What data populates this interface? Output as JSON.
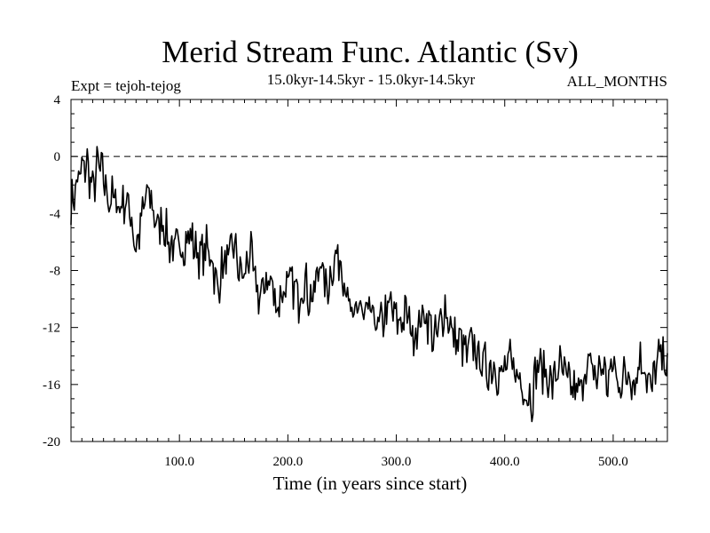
{
  "chart_data": {
    "type": "line",
    "title": "Merid Stream Func. Atlantic (Sv)",
    "subtitle_left": "Expt = tejoh-tejog",
    "subtitle_center": "15.0kyr-14.5kyr - 15.0kyr-14.5kyr",
    "subtitle_right": "ALL_MONTHS",
    "xlabel": "Time (in years since start)",
    "ylabel": "",
    "xlim": [
      0,
      550
    ],
    "ylim": [
      -20,
      4
    ],
    "x_ticks": [
      100,
      200,
      300,
      400,
      500
    ],
    "x_tick_labels": [
      "100.0",
      "200.0",
      "300.0",
      "400.0",
      "500.0"
    ],
    "y_ticks": [
      -20,
      -16,
      -12,
      -8,
      -4,
      0,
      4
    ],
    "y_tick_labels": [
      "-20",
      "-16",
      "-12",
      "-8",
      "-4",
      "0",
      "4"
    ],
    "reference_line": {
      "y": 0,
      "style": "dashed"
    },
    "series": [
      {
        "name": "Merid Stream Func. Atlantic",
        "x": [
          0,
          5,
          10,
          15,
          20,
          25,
          30,
          35,
          40,
          45,
          50,
          55,
          60,
          65,
          70,
          75,
          80,
          85,
          90,
          95,
          100,
          105,
          110,
          115,
          120,
          125,
          130,
          135,
          140,
          145,
          150,
          155,
          160,
          165,
          170,
          175,
          180,
          185,
          190,
          195,
          200,
          205,
          210,
          215,
          220,
          225,
          230,
          235,
          240,
          245,
          250,
          255,
          260,
          265,
          270,
          275,
          280,
          285,
          290,
          295,
          300,
          305,
          310,
          315,
          320,
          325,
          330,
          335,
          340,
          345,
          350,
          355,
          360,
          365,
          370,
          375,
          380,
          385,
          390,
          395,
          400,
          405,
          410,
          415,
          420,
          425,
          430,
          435,
          440,
          445,
          450,
          455,
          460,
          465,
          470,
          475,
          480,
          485,
          490,
          495,
          500,
          505,
          510,
          515,
          520,
          525,
          530,
          535,
          540,
          545,
          550
        ],
        "values": [
          -3.5,
          -2.0,
          -1.0,
          -0.5,
          -2.5,
          -0.5,
          -1.5,
          -3.0,
          -3.0,
          -3.5,
          -3.0,
          -4.0,
          -6.5,
          -4.5,
          -2.5,
          -3.5,
          -5.0,
          -4.5,
          -6.0,
          -6.5,
          -6.5,
          -6.0,
          -5.5,
          -6.5,
          -7.0,
          -6.5,
          -7.0,
          -9.5,
          -7.5,
          -7.5,
          -6.0,
          -8.0,
          -8.5,
          -6.5,
          -9.0,
          -10.0,
          -8.5,
          -9.0,
          -10.5,
          -9.5,
          -9.0,
          -9.0,
          -10.0,
          -8.5,
          -10.0,
          -9.5,
          -7.0,
          -9.5,
          -8.0,
          -7.0,
          -7.5,
          -10.0,
          -12.0,
          -10.0,
          -11.5,
          -11.0,
          -11.5,
          -12.0,
          -11.0,
          -10.5,
          -11.5,
          -11.5,
          -11.0,
          -12.5,
          -12.0,
          -11.0,
          -11.5,
          -13.0,
          -12.0,
          -10.5,
          -12.0,
          -13.0,
          -13.0,
          -14.0,
          -13.0,
          -14.0,
          -14.5,
          -15.0,
          -14.5,
          -15.5,
          -15.0,
          -14.5,
          -15.0,
          -16.0,
          -16.5,
          -17.0,
          -14.5,
          -15.0,
          -15.5,
          -16.0,
          -14.5,
          -15.5,
          -16.0,
          -16.5,
          -16.5,
          -14.5,
          -15.0,
          -15.5,
          -14.5,
          -16.0,
          -14.5,
          -16.0,
          -15.5,
          -15.0,
          -16.0,
          -14.0,
          -15.0,
          -16.5,
          -14.5,
          -14.0,
          -14.5
        ]
      }
    ]
  }
}
